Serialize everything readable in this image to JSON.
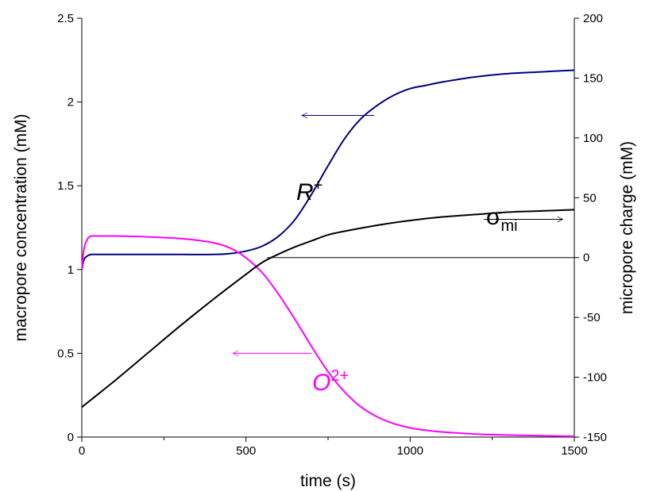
{
  "chart_data": {
    "type": "line",
    "xlabel": "time (s)",
    "ylabel_left": "macropore concentration (mM)",
    "ylabel_right": "micropore charge (mM)",
    "xlim": [
      0,
      1500
    ],
    "ylim_left": [
      0,
      2.5
    ],
    "ylim_right": [
      -150,
      200
    ],
    "x_ticks": [
      "0",
      "500",
      "1000",
      "1500"
    ],
    "y_left_ticks": [
      "0",
      "0.5",
      "1",
      "1.5",
      "2",
      "2.5"
    ],
    "y_right_ticks": [
      "-150",
      "-100",
      "-50",
      "0",
      "50",
      "100",
      "150",
      "200"
    ],
    "grid": false,
    "series": [
      {
        "label_main": "R",
        "label_sup": "+",
        "axis": "left",
        "color": "#000080",
        "x": [
          0,
          5,
          10,
          20,
          30,
          50,
          100,
          200,
          300,
          400,
          450,
          500,
          550,
          600,
          650,
          700,
          750,
          800,
          850,
          900,
          950,
          1000,
          1050,
          1100,
          1200,
          1300,
          1400,
          1500
        ],
        "y": [
          1.0,
          1.05,
          1.07,
          1.085,
          1.09,
          1.09,
          1.09,
          1.09,
          1.09,
          1.09,
          1.095,
          1.11,
          1.14,
          1.2,
          1.3,
          1.45,
          1.62,
          1.78,
          1.9,
          1.98,
          2.04,
          2.08,
          2.1,
          2.12,
          2.15,
          2.17,
          2.18,
          2.19
        ]
      },
      {
        "label_main": "O",
        "label_sup": "2+",
        "axis": "left",
        "color": "#ff00ff",
        "x": [
          0,
          5,
          10,
          20,
          30,
          50,
          100,
          200,
          300,
          350,
          400,
          450,
          500,
          550,
          600,
          650,
          700,
          750,
          800,
          850,
          900,
          950,
          1000,
          1050,
          1100,
          1200,
          1300,
          1400,
          1500
        ],
        "y": [
          1.0,
          1.1,
          1.15,
          1.19,
          1.2,
          1.2,
          1.2,
          1.195,
          1.185,
          1.175,
          1.16,
          1.13,
          1.07,
          0.98,
          0.85,
          0.7,
          0.54,
          0.39,
          0.27,
          0.18,
          0.12,
          0.08,
          0.055,
          0.04,
          0.03,
          0.018,
          0.012,
          0.008,
          0.005
        ]
      },
      {
        "label_main": "σ",
        "label_sub": "mi",
        "axis": "right",
        "color": "#000000",
        "x": [
          0,
          100,
          200,
          300,
          400,
          500,
          550,
          600,
          650,
          700,
          750,
          800,
          900,
          1000,
          1100,
          1200,
          1300,
          1400,
          1500
        ],
        "y": [
          -125,
          -103,
          -80,
          -57,
          -35,
          -14,
          -4,
          3,
          9,
          14,
          19,
          22,
          27,
          31,
          34,
          36,
          38,
          39,
          40
        ]
      }
    ],
    "reference_line": {
      "axis": "right",
      "y": 0,
      "x_start": 565,
      "x_end": 1500
    },
    "arrows": [
      {
        "axis": "left",
        "x_from": 890,
        "x_to": 670,
        "y": 1.92,
        "color": "#000080"
      },
      {
        "axis": "left",
        "x_from": 700,
        "x_to": 460,
        "y": 0.5,
        "color": "#ff00ff"
      },
      {
        "axis": "right",
        "x_from": 1225,
        "x_to": 1465,
        "y": 32,
        "color": "#000000"
      }
    ]
  }
}
